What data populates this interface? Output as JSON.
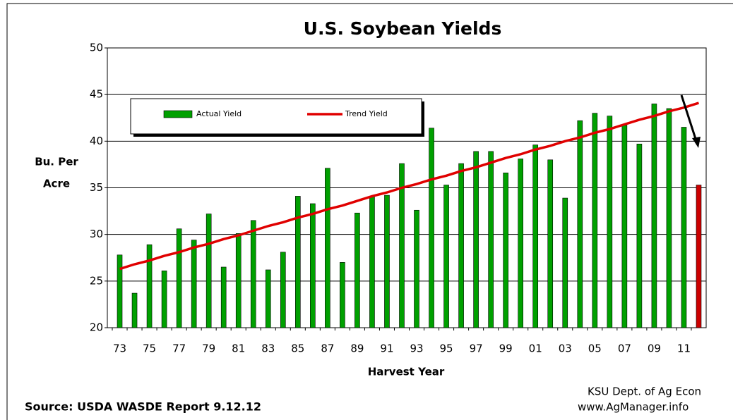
{
  "chart_data": {
    "type": "bar",
    "title": "U.S. Soybean Yields",
    "ylabel": [
      "Bu. Per",
      "Acre"
    ],
    "xlabel": "Harvest Year",
    "source": "Source:  USDA WASDE Report 9.12.12",
    "credit": [
      "KSU Dept. of Ag Econ",
      "www.AgManager.info"
    ],
    "categories": [
      "73",
      null,
      "75",
      null,
      "77",
      null,
      "79",
      null,
      "81",
      null,
      "83",
      null,
      "85",
      null,
      "87",
      null,
      "89",
      null,
      "91",
      null,
      "93",
      null,
      "95",
      null,
      "97",
      null,
      "99",
      null,
      "01",
      null,
      "03",
      null,
      "05",
      null,
      "07",
      null,
      "09",
      null,
      "11",
      null
    ],
    "series": [
      {
        "name": "Actual Yield",
        "type": "bar",
        "color": "#00a000",
        "colors": [
          "#00a000",
          "#00a000",
          "#00a000",
          "#00a000",
          "#00a000",
          "#00a000",
          "#00a000",
          "#00a000",
          "#00a000",
          "#00a000",
          "#00a000",
          "#00a000",
          "#00a000",
          "#00a000",
          "#00a000",
          "#00a000",
          "#00a000",
          "#00a000",
          "#00a000",
          "#00a000",
          "#00a000",
          "#00a000",
          "#00a000",
          "#00a000",
          "#00a000",
          "#00a000",
          "#00a000",
          "#00a000",
          "#00a000",
          "#00a000",
          "#00a000",
          "#00a000",
          "#00a000",
          "#00a000",
          "#00a000",
          "#00a000",
          "#00a000",
          "#00a000",
          "#00a000",
          "#cc0000"
        ],
        "values": [
          27.8,
          23.7,
          28.9,
          26.1,
          30.6,
          29.4,
          32.2,
          26.5,
          30.1,
          31.5,
          26.2,
          28.1,
          34.1,
          33.3,
          37.1,
          27.0,
          32.3,
          34.1,
          34.2,
          37.6,
          32.6,
          41.4,
          35.3,
          37.6,
          38.9,
          38.9,
          36.6,
          38.1,
          39.6,
          38.0,
          33.9,
          42.2,
          43.0,
          42.7,
          41.7,
          39.7,
          44.0,
          43.5,
          41.5,
          35.3
        ]
      },
      {
        "name": "Trend Yield",
        "type": "line",
        "color": "#e00000",
        "values": [
          26.3,
          26.8,
          27.2,
          27.7,
          28.1,
          28.6,
          29.0,
          29.5,
          29.9,
          30.4,
          30.9,
          31.3,
          31.8,
          32.2,
          32.7,
          33.1,
          33.6,
          34.1,
          34.5,
          35.0,
          35.4,
          35.9,
          36.3,
          36.8,
          37.2,
          37.7,
          38.2,
          38.6,
          39.1,
          39.5,
          40.0,
          40.4,
          40.9,
          41.3,
          41.8,
          42.3,
          42.7,
          43.2,
          43.6,
          44.1
        ]
      }
    ],
    "ylim": [
      20,
      50
    ],
    "yticks": [
      20,
      25,
      30,
      35,
      40,
      45,
      50
    ],
    "grid": true
  }
}
